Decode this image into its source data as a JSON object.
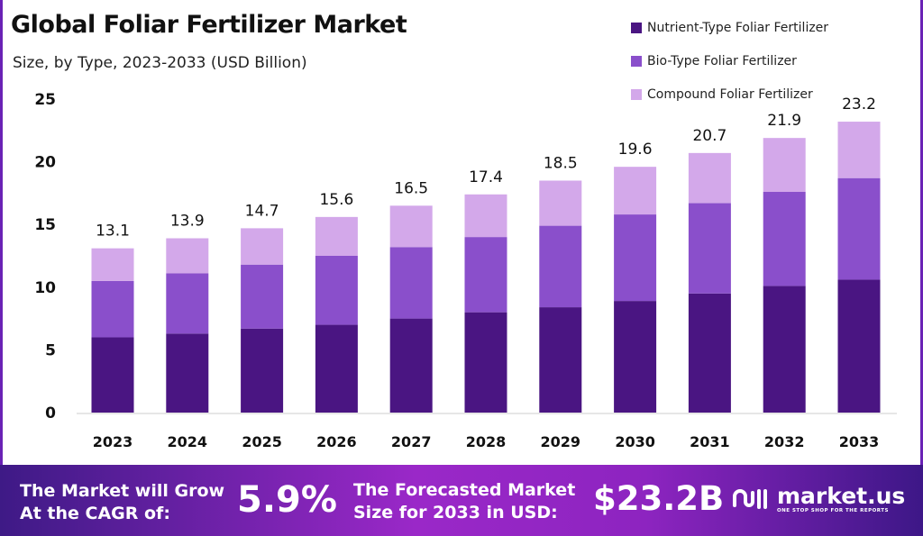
{
  "chart_data": {
    "type": "bar",
    "stacked": true,
    "title": "Global Foliar Fertilizer Market",
    "subtitle": "Size, by Type, 2023-2033 (USD Billion)",
    "xlabel": "",
    "ylabel": "",
    "ylim": [
      0,
      25
    ],
    "yticks": [
      0,
      5,
      10,
      15,
      20,
      25
    ],
    "grid": false,
    "legend_position": "top-right",
    "categories": [
      "2023",
      "2024",
      "2025",
      "2026",
      "2027",
      "2028",
      "2029",
      "2030",
      "2031",
      "2032",
      "2033"
    ],
    "series": [
      {
        "name": "Nutrient-Type Foliar Fertilizer",
        "color": "#4a1582",
        "values": [
          6.0,
          6.3,
          6.7,
          7.0,
          7.5,
          8.0,
          8.4,
          8.9,
          9.5,
          10.1,
          10.6
        ]
      },
      {
        "name": "Bio-Type Foliar Fertilizer",
        "color": "#8a4fcb",
        "values": [
          4.5,
          4.8,
          5.1,
          5.5,
          5.7,
          6.0,
          6.5,
          6.9,
          7.2,
          7.5,
          8.1
        ]
      },
      {
        "name": "Compound Foliar Fertilizer",
        "color": "#d3a8ea",
        "values": [
          2.6,
          2.8,
          2.9,
          3.1,
          3.3,
          3.4,
          3.6,
          3.8,
          4.0,
          4.3,
          4.5
        ]
      }
    ],
    "totals": [
      "13.1",
      "13.9",
      "14.7",
      "15.6",
      "16.5",
      "17.4",
      "18.5",
      "19.6",
      "20.7",
      "21.9",
      "23.2"
    ]
  },
  "banner": {
    "cagr_label_line1": "The Market will Grow",
    "cagr_label_line2": "At the CAGR of:",
    "cagr_value": "5.9%",
    "forecast_label_line1": "The Forecasted Market",
    "forecast_label_line2": "Size for 2033 in USD:",
    "forecast_value": "$23.2B",
    "logo_name": "market.us",
    "logo_tagline": "ONE STOP SHOP FOR THE REPORTS"
  }
}
